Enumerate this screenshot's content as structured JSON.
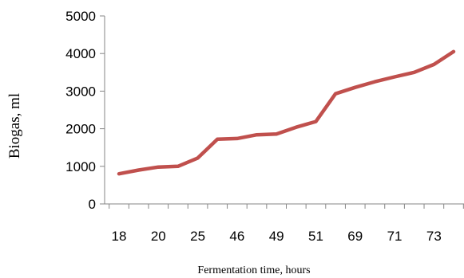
{
  "chart_data": {
    "type": "line",
    "title": "",
    "xlabel": "Fermentation time, hours",
    "ylabel": "Biogas, ml",
    "x_tick_labels": [
      "18",
      "20",
      "25",
      "46",
      "49",
      "51",
      "69",
      "71",
      "73"
    ],
    "y_tick_labels": [
      "0",
      "1000",
      "2000",
      "3000",
      "4000",
      "5000"
    ],
    "ylim": [
      0,
      5000
    ],
    "grid": false,
    "legend": "none",
    "series": [
      {
        "color": "#c0504d",
        "values": [
          800,
          900,
          980,
          1000,
          1220,
          1720,
          1740,
          1840,
          1860,
          2040,
          2190,
          2930,
          3100,
          3250,
          3380,
          3500,
          3710,
          4050
        ]
      }
    ]
  }
}
